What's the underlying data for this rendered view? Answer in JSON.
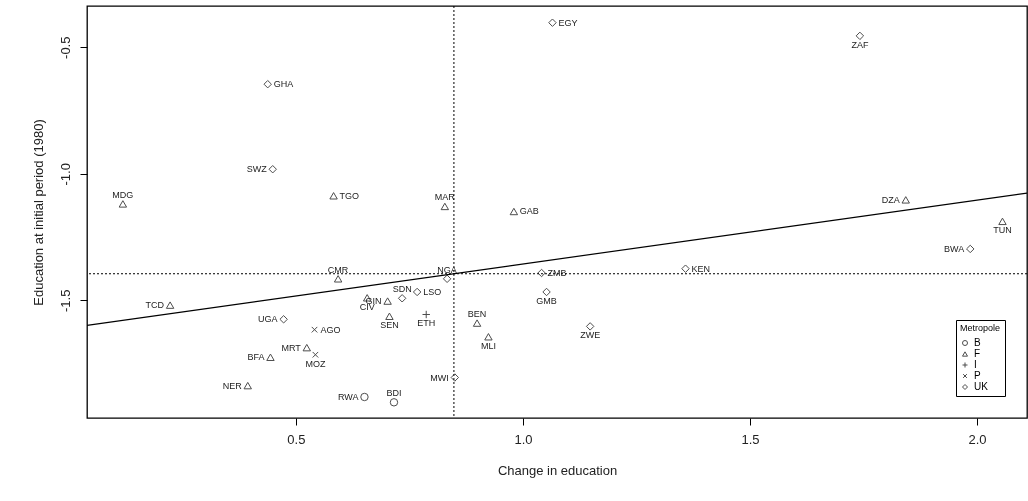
{
  "chart_data": {
    "type": "scatter",
    "xlabel": "Change in education",
    "ylabel": "Education at initial period (1980)",
    "legend_title": "Metropole",
    "legend": "bottom right",
    "grid": false,
    "xlim": [
      0.04,
      2.11
    ],
    "ylim": [
      -1.965,
      -0.337
    ],
    "xticks": [
      0.5,
      {
        "value": 1,
        "label": "1.0"
      },
      1.5,
      {
        "value": 2,
        "label": "2.0"
      }
    ],
    "yticks": [
      -0.5,
      {
        "value": -1,
        "label": "-1.0"
      },
      -1.5
    ],
    "ref_lines": [
      {
        "axis": "x",
        "value": 0.848,
        "line_style": "dotted",
        "color": "#000000"
      },
      {
        "axis": "y",
        "value": -1.395,
        "line_style": "dotted",
        "color": "#000000"
      }
    ],
    "series": [
      {
        "name": "B",
        "color": "#000000",
        "marker": "circle",
        "x": [
          0.651,
          0.716
        ],
        "values": [
          -1.882,
          -1.903
        ],
        "value_labels": [
          "RWA",
          "BDI"
        ]
      },
      {
        "name": "F",
        "color": "#000000",
        "marker": "triangle",
        "x": [
          0.119,
          0.583,
          0.828,
          0.98,
          1.843,
          2.056,
          0.593,
          0.223,
          0.657,
          0.702,
          0.706,
          0.899,
          0.924,
          0.524,
          0.444,
          0.394
        ],
        "values": [
          -1.119,
          -1.087,
          -1.129,
          -1.149,
          -1.103,
          -1.188,
          -1.415,
          -1.519,
          -1.49,
          -1.503,
          -1.563,
          -1.59,
          -1.644,
          -1.687,
          -1.725,
          -1.837
        ],
        "value_labels": [
          "MDG",
          "TGO",
          "MAR",
          "GAB",
          "DZA",
          "TUN",
          "CMR",
          "TCD",
          "CIV",
          "GIN",
          "SEN",
          "BEN",
          "MLI",
          "MRT",
          "BFA",
          "NER"
        ]
      },
      {
        "name": "I",
        "color": "#000000",
        "marker": "cross",
        "x": [
          0.787
        ],
        "values": [
          -1.556
        ],
        "value_labels": [
          "ETH"
        ]
      },
      {
        "name": "P",
        "color": "#000000",
        "marker": "x",
        "x": [
          0.541,
          0.543
        ],
        "values": [
          -1.616,
          -1.715
        ],
        "value_labels": [
          "AGO",
          "MOZ"
        ]
      },
      {
        "name": "UK",
        "color": "#000000",
        "marker": "diamond",
        "x": [
          1.065,
          1.742,
          0.438,
          0.449,
          1.985,
          1.358,
          1.041,
          1.052,
          1.148,
          0.833,
          0.734,
          0.767,
          0.473,
          0.85
        ],
        "values": [
          -0.403,
          -0.455,
          -0.646,
          -0.982,
          -1.297,
          -1.375,
          -1.392,
          -1.467,
          -1.603,
          -1.415,
          -1.492,
          -1.467,
          -1.575,
          -1.805
        ],
        "value_labels": [
          "EGY",
          "ZAF",
          "GHA",
          "SWZ",
          "BWA",
          "KEN",
          "ZMB",
          "GMB",
          "ZWE",
          "NGA",
          "SDN",
          "LSO",
          "UGA",
          "MWI"
        ]
      },
      {
        "type": "line",
        "color": "#000000",
        "line_style": "solid",
        "x": [
          0.04,
          2.11
        ],
        "values": [
          -1.599,
          -1.076
        ]
      }
    ]
  }
}
